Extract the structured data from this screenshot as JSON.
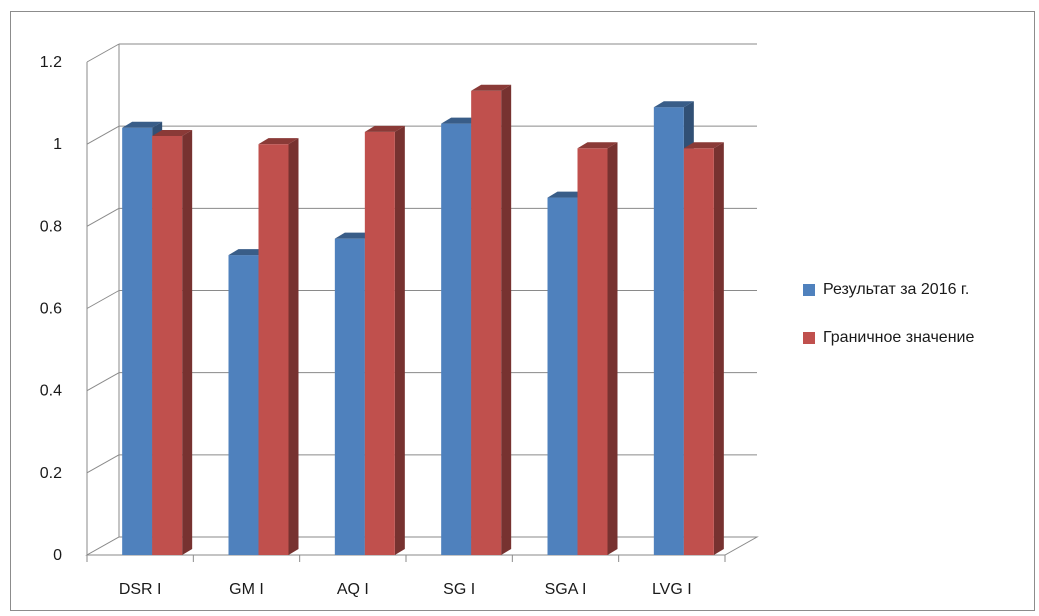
{
  "chart_data": {
    "type": "bar",
    "title": "",
    "xlabel": "",
    "ylabel": "",
    "categories": [
      "DSR I",
      "GM I",
      "AQ I",
      "SG I",
      "SGA I",
      "LVG I"
    ],
    "series": [
      {
        "name": "Результат за 2016 г.",
        "color": "#4f81bd",
        "values": [
          1.04,
          0.73,
          0.77,
          1.05,
          0.87,
          1.09
        ]
      },
      {
        "name": "Граничное значение",
        "color": "#c0504d",
        "values": [
          1.02,
          1.0,
          1.03,
          1.13,
          0.99,
          0.99
        ]
      }
    ],
    "ylim": [
      0,
      1.2
    ],
    "yticks": [
      "0",
      "0.2",
      "0.4",
      "0.6",
      "0.8",
      "1",
      "1.2"
    ],
    "grid": true,
    "style": "3d-clustered-column",
    "legend_position": "right"
  }
}
